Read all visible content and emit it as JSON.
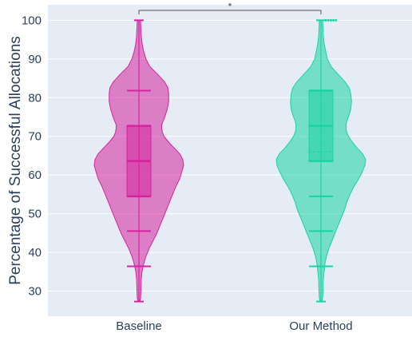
{
  "chart_data": {
    "type": "violin",
    "ylabel": "Percentage of Successful Allocations",
    "xlabel": "",
    "ylim": [
      23.5,
      104
    ],
    "yticks": [
      30,
      40,
      50,
      60,
      70,
      80,
      90,
      100
    ],
    "grid": true,
    "background": "#e5ecf6",
    "significance": {
      "between": [
        "Baseline",
        "Our Method"
      ],
      "label": "*"
    },
    "series": [
      {
        "name": "Baseline",
        "color": "#d6249f",
        "stats": {
          "min": 27.3,
          "q1": 54.5,
          "median": 63.6,
          "mean": 63.8,
          "q3": 72.7,
          "max": 100
        },
        "percentile_lines": [
          36.4,
          45.5,
          81.8
        ],
        "density": [
          [
            27.3,
            1
          ],
          [
            28,
            2
          ],
          [
            30,
            2.5
          ],
          [
            33,
            3
          ],
          [
            35,
            4
          ],
          [
            37,
            6
          ],
          [
            39,
            9
          ],
          [
            41,
            13
          ],
          [
            43,
            18
          ],
          [
            45,
            23
          ],
          [
            47,
            27
          ],
          [
            49,
            31
          ],
          [
            51,
            35
          ],
          [
            53,
            39
          ],
          [
            55,
            43
          ],
          [
            57,
            47
          ],
          [
            59,
            52
          ],
          [
            61,
            55
          ],
          [
            62.5,
            57
          ],
          [
            64,
            56
          ],
          [
            65.5,
            52
          ],
          [
            67,
            45
          ],
          [
            68.5,
            38
          ],
          [
            70,
            32
          ],
          [
            71,
            30
          ],
          [
            72,
            29
          ],
          [
            73,
            29
          ],
          [
            74,
            31
          ],
          [
            75,
            33
          ],
          [
            77,
            36
          ],
          [
            79,
            38
          ],
          [
            81,
            38
          ],
          [
            82.5,
            37
          ],
          [
            84,
            33
          ],
          [
            86,
            24
          ],
          [
            88,
            14
          ],
          [
            90,
            9
          ],
          [
            92,
            6
          ],
          [
            94,
            4
          ],
          [
            96,
            3
          ],
          [
            98,
            2.5
          ],
          [
            100,
            2
          ]
        ],
        "outliers": []
      },
      {
        "name": "Our Method",
        "color": "#19d3a2",
        "stats": {
          "min": 27.3,
          "q1": 63.6,
          "median": 72.7,
          "mean": 66.0,
          "q3": 81.8,
          "max": 100
        },
        "percentile_lines": [
          36.4,
          45.5,
          54.5
        ],
        "density": [
          [
            27.3,
            1
          ],
          [
            28,
            2
          ],
          [
            30,
            2.5
          ],
          [
            33,
            3
          ],
          [
            35,
            4
          ],
          [
            37,
            5
          ],
          [
            39,
            7
          ],
          [
            41,
            10
          ],
          [
            43,
            14
          ],
          [
            45,
            18
          ],
          [
            47,
            22
          ],
          [
            49,
            26
          ],
          [
            51,
            30
          ],
          [
            53,
            33
          ],
          [
            55,
            37
          ],
          [
            57,
            42
          ],
          [
            59,
            48
          ],
          [
            61,
            53
          ],
          [
            62.5,
            56
          ],
          [
            64,
            57
          ],
          [
            65.5,
            53
          ],
          [
            67,
            46
          ],
          [
            68.5,
            40
          ],
          [
            70,
            35
          ],
          [
            71,
            33
          ],
          [
            72,
            32
          ],
          [
            73,
            32
          ],
          [
            74,
            33
          ],
          [
            75,
            35
          ],
          [
            77,
            38
          ],
          [
            79,
            39
          ],
          [
            81,
            38
          ],
          [
            82.5,
            36
          ],
          [
            84,
            31
          ],
          [
            86,
            22
          ],
          [
            88,
            13
          ],
          [
            90,
            8
          ],
          [
            92,
            6
          ],
          [
            94,
            4
          ],
          [
            96,
            3
          ],
          [
            98,
            2.5
          ],
          [
            100,
            2
          ]
        ],
        "outliers": [
          100,
          100,
          100,
          100,
          100
        ]
      }
    ]
  }
}
